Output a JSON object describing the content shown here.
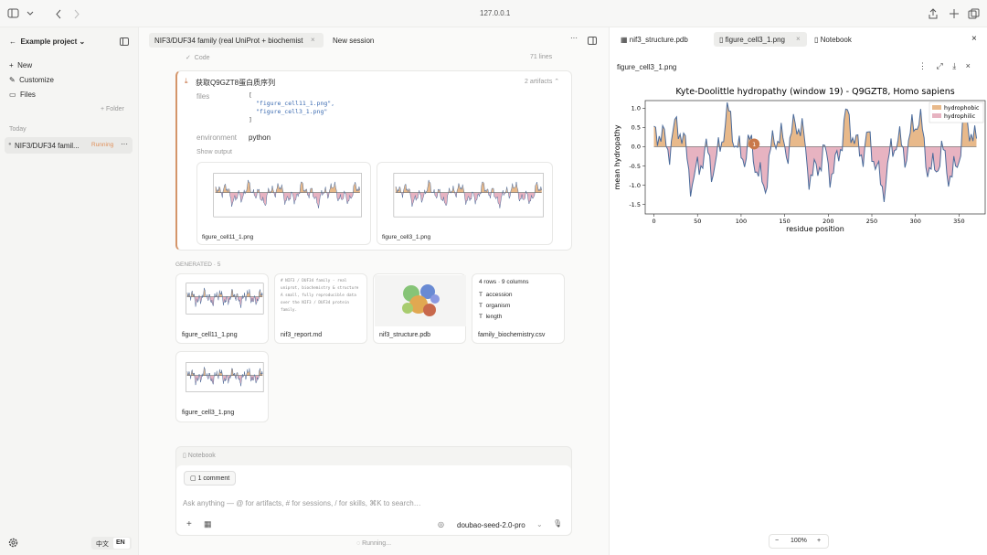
{
  "browser": {
    "address": "127.0.0.1"
  },
  "sidebar": {
    "project": "Example project",
    "menu": [
      "New",
      "Customize",
      "Files"
    ],
    "folder": "+ Folder",
    "section": "Today",
    "session": {
      "title": "NIF3/DUF34 famil...",
      "status": "Running"
    },
    "langs": [
      "中文",
      "EN"
    ]
  },
  "tabs": [
    "NIF3/DUF34 family (real UniProt + biochemist",
    "New session"
  ],
  "main": {
    "code_label": "Code",
    "lines": "71 lines",
    "tool": {
      "title": "获取Q9GZT8蛋白质序列",
      "artifacts": "2 artifacts",
      "files_key": "files",
      "files_value": [
        "[",
        "\"figure_cell11_1.png\",",
        "\"figure_cell3_1.png\"",
        "]"
      ],
      "env_key": "environment",
      "env_value": "python",
      "show_output": "Show output",
      "images": [
        "figure_cell11_1.png",
        "figure_cell3_1.png"
      ]
    },
    "generated_label": "GENERATED · 5",
    "generated": [
      {
        "name": "figure_cell11_1.png"
      },
      {
        "name": "nif3_report.md",
        "preview": [
          "# NIF3 / DUF34 family - real",
          "uniprot, biochemistry & structure",
          "A small, fully reproducible data",
          "over the NIF3 / DUF34 protein",
          "family."
        ]
      },
      {
        "name": "nif3_structure.pdb"
      },
      {
        "name": "family_biochemistry.csv",
        "rows": "4 rows · 9 columns",
        "cols": [
          "accession",
          "organism",
          "length"
        ]
      },
      {
        "name": "figure_cell3_1.png"
      }
    ]
  },
  "composer": {
    "notebook": "Notebook",
    "comment": "1 comment",
    "placeholder": "Ask anything — @ for artifacts, # for sessions, / for skills, ⌘K to search…",
    "model": "doubao-seed-2.0-pro",
    "status": "Running..."
  },
  "right": {
    "tabs": [
      "nif3_structure.pdb",
      "figure_cell3_1.png",
      "Notebook"
    ],
    "file": "figure_cell3_1.png",
    "zoom": "100%",
    "chart": {
      "title": "Kyte-Doolittle hydropathy (window 19) - Q9GZT8, Homo sapiens",
      "xlabel": "residue position",
      "ylabel": "mean hydropathy",
      "legend": [
        "hydrophobic",
        "hydrophilic"
      ],
      "marker": "1",
      "xlim": [
        -10,
        380
      ],
      "ylim": [
        -1.75,
        1.2
      ],
      "xticks": [
        0,
        50,
        100,
        150,
        200,
        250,
        300,
        350
      ],
      "yticks": [
        {
          "value": 1.0,
          "label": "1.0"
        },
        {
          "value": 0.5,
          "label": "0.5"
        },
        {
          "value": 0.0,
          "label": "0.0"
        },
        {
          "value": -0.5,
          "label": "-0.5"
        },
        {
          "value": -1.0,
          "label": "-1.0"
        },
        {
          "value": -1.5,
          "label": "-1.5"
        }
      ]
    }
  }
}
